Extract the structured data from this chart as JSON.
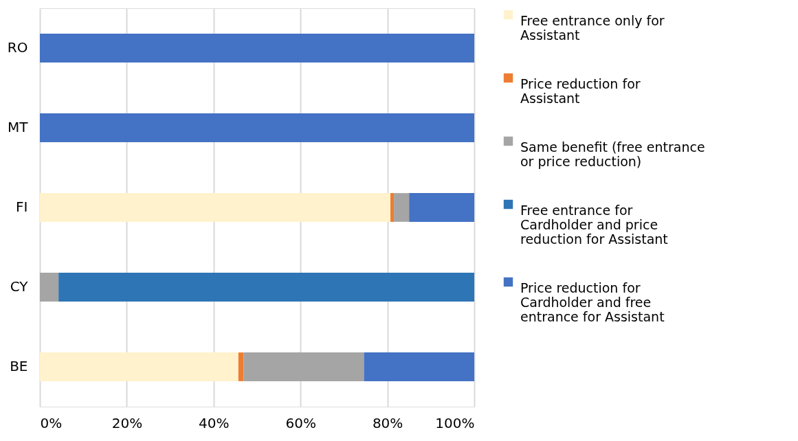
{
  "chart_data": {
    "type": "bar",
    "orientation": "horizontal",
    "stacked": true,
    "categories": [
      "RO",
      "MT",
      "FI",
      "CY",
      "BE"
    ],
    "series": [
      {
        "name": "Free entrance only for Assistant",
        "color": "#fff2cc",
        "values": [
          0,
          0,
          80.7,
          0,
          45.7
        ]
      },
      {
        "name": "Price reduction for Assistant",
        "color": "#ed7d31",
        "values": [
          0,
          0,
          0.8,
          0,
          1.2
        ]
      },
      {
        "name": "Same benefit (free entrance or price reduction)",
        "color": "#a5a5a5",
        "values": [
          0,
          0,
          3.5,
          4.3,
          27.7
        ]
      },
      {
        "name": "Free entrance for Cardholder and price reduction for Assistant",
        "color": "#2e75b6",
        "values": [
          0,
          0,
          0,
          95.7,
          0
        ]
      },
      {
        "name": "Price reduction for Cardholder and free entrance for Assistant",
        "color": "#4472c4",
        "values": [
          100,
          100,
          15.0,
          0,
          25.4
        ]
      }
    ],
    "xlim": [
      0,
      100
    ],
    "xticks": [
      {
        "value": 0,
        "label": "0%"
      },
      {
        "value": 20,
        "label": "20%"
      },
      {
        "value": 40,
        "label": "40%"
      },
      {
        "value": 60,
        "label": "60%"
      },
      {
        "value": 80,
        "label": "80%"
      },
      {
        "value": 100,
        "label": "100%"
      }
    ],
    "grid": "x",
    "legend": "right"
  }
}
